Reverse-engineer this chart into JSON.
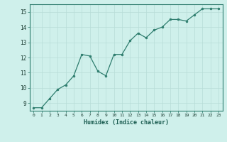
{
  "x": [
    0,
    1,
    2,
    3,
    4,
    5,
    6,
    7,
    8,
    9,
    10,
    11,
    12,
    13,
    14,
    15,
    16,
    17,
    18,
    19,
    20,
    21,
    22,
    23
  ],
  "y": [
    8.7,
    8.7,
    9.3,
    9.9,
    10.2,
    10.8,
    12.2,
    12.1,
    11.1,
    10.8,
    12.2,
    12.2,
    13.1,
    13.6,
    13.3,
    13.8,
    14.0,
    14.5,
    14.5,
    14.4,
    14.8,
    15.2,
    15.2,
    15.2
  ],
  "line_color": "#2e7d6e",
  "marker": "o",
  "marker_size": 2.0,
  "xlabel": "Humidex (Indice chaleur)",
  "xlim": [
    -0.5,
    23.5
  ],
  "ylim": [
    8.5,
    15.5
  ],
  "yticks": [
    9,
    10,
    11,
    12,
    13,
    14,
    15
  ],
  "xticks": [
    0,
    1,
    2,
    3,
    4,
    5,
    6,
    7,
    8,
    9,
    10,
    11,
    12,
    13,
    14,
    15,
    16,
    17,
    18,
    19,
    20,
    21,
    22,
    23
  ],
  "bg_color": "#cff0eb",
  "grid_color": "#b8ddd7",
  "xlabel_color": "#1a5c50",
  "tick_label_color": "#1a3a30",
  "spine_color": "#2e7d6e"
}
